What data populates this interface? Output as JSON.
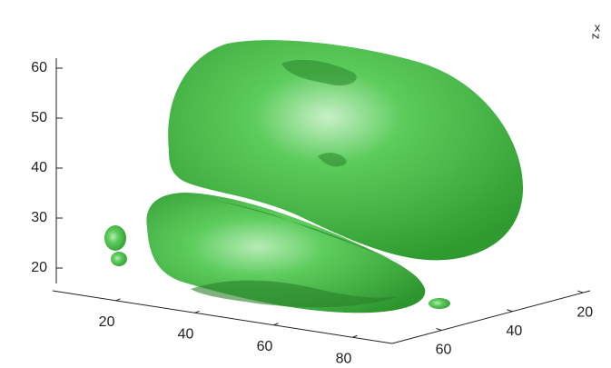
{
  "chart_data": {
    "type": "isosurface",
    "color": "#5ccc5c",
    "zlim": [
      17,
      62
    ],
    "zticks": [
      20,
      30,
      40,
      50,
      60
    ],
    "xlim": [
      4,
      90
    ],
    "xticks": [
      20,
      40,
      60,
      80
    ],
    "ylim": [
      74,
      18
    ],
    "yticks": [
      20,
      40,
      60
    ],
    "zlabel": "z",
    "xlabel": "x"
  }
}
